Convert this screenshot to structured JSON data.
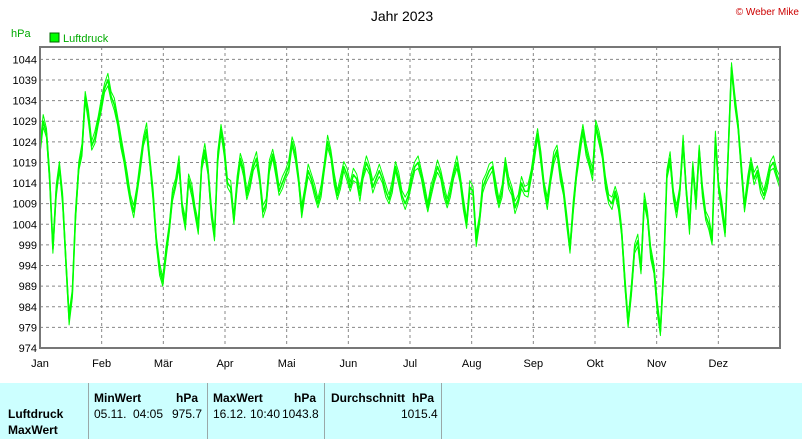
{
  "header": {
    "copyright": "© Weber Mike"
  },
  "chart_data": {
    "type": "line",
    "title": "Jahr 2023",
    "ylabel": "hPa",
    "xlabel": "",
    "ylim": [
      974,
      1047
    ],
    "yticks": [
      974,
      979,
      984,
      989,
      994,
      999,
      1004,
      1009,
      1014,
      1019,
      1024,
      1029,
      1034,
      1039,
      1044
    ],
    "x_tick_labels": [
      "Jan",
      "Feb",
      "Mär",
      "Apr",
      "Mai",
      "Jun",
      "Jul",
      "Aug",
      "Sep",
      "Okt",
      "Nov",
      "Dez"
    ],
    "grid": true,
    "legend": "top-left",
    "series": [
      {
        "name": "Luftdruck",
        "color": "#00ff00",
        "values": [
          1022,
          1029,
          1026,
          1015,
          998,
          1012,
          1018,
          1010,
          995,
          981,
          987,
          1006,
          1018,
          1022,
          1035,
          1030,
          1023,
          1025,
          1029,
          1033,
          1037,
          1039,
          1035,
          1033,
          1029,
          1024,
          1020,
          1015,
          1010,
          1007,
          1012,
          1018,
          1024,
          1027,
          1019,
          1011,
          1000,
          993,
          990,
          997,
          1003,
          1011,
          1014,
          1019,
          1008,
          1004,
          1015,
          1012,
          1007,
          1003,
          1018,
          1022,
          1017,
          1007,
          1001,
          1020,
          1027,
          1022,
          1014,
          1013,
          1005,
          1014,
          1020,
          1017,
          1011,
          1014,
          1018,
          1020,
          1015,
          1007,
          1009,
          1018,
          1021,
          1017,
          1012,
          1014,
          1016,
          1018,
          1024,
          1021,
          1015,
          1007,
          1012,
          1017,
          1015,
          1012,
          1009,
          1012,
          1018,
          1024,
          1021,
          1015,
          1011,
          1014,
          1018,
          1016,
          1013,
          1016,
          1015,
          1011,
          1016,
          1019,
          1017,
          1013,
          1015,
          1017,
          1015,
          1012,
          1010,
          1013,
          1018,
          1015,
          1011,
          1009,
          1011,
          1015,
          1018,
          1019,
          1016,
          1012,
          1008,
          1012,
          1015,
          1018,
          1016,
          1012,
          1009,
          1012,
          1016,
          1019,
          1015,
          1009,
          1004,
          1013,
          1012,
          1000,
          1005,
          1013,
          1015,
          1017,
          1018,
          1013,
          1009,
          1012,
          1019,
          1014,
          1012,
          1008,
          1010,
          1014,
          1012,
          1012,
          1016,
          1021,
          1026,
          1020,
          1013,
          1009,
          1015,
          1020,
          1022,
          1016,
          1012,
          1005,
          998,
          1008,
          1016,
          1022,
          1027,
          1022,
          1019,
          1016,
          1028,
          1025,
          1021,
          1014,
          1010,
          1009,
          1012,
          1009,
          1002,
          990,
          980,
          988,
          998,
          1000,
          993,
          1010,
          1006,
          997,
          993,
          984,
          978,
          993,
          1016,
          1020,
          1011,
          1007,
          1012,
          1024,
          1012,
          1003,
          1018,
          1009,
          1022,
          1012,
          1006,
          1004,
          1000,
          1025,
          1013,
          1008,
          1002,
          1022,
          1042,
          1034,
          1028,
          1018,
          1008,
          1014,
          1019,
          1015,
          1017,
          1013,
          1011,
          1014,
          1018,
          1019,
          1016,
          1014
        ]
      }
    ]
  },
  "stats": {
    "row1": "Luftdruck",
    "row2": "MaxWert",
    "min_header": "MinWert",
    "max_header": "MaxWert",
    "avg_header": "Durchschnitt",
    "unit": "hPa",
    "min_date": "05.11.",
    "min_time": "04:05",
    "min_value": "975.7",
    "max_date": "16.12.",
    "max_time": "10:40",
    "max_value": "1043.8",
    "avg_value": "1015.4"
  }
}
